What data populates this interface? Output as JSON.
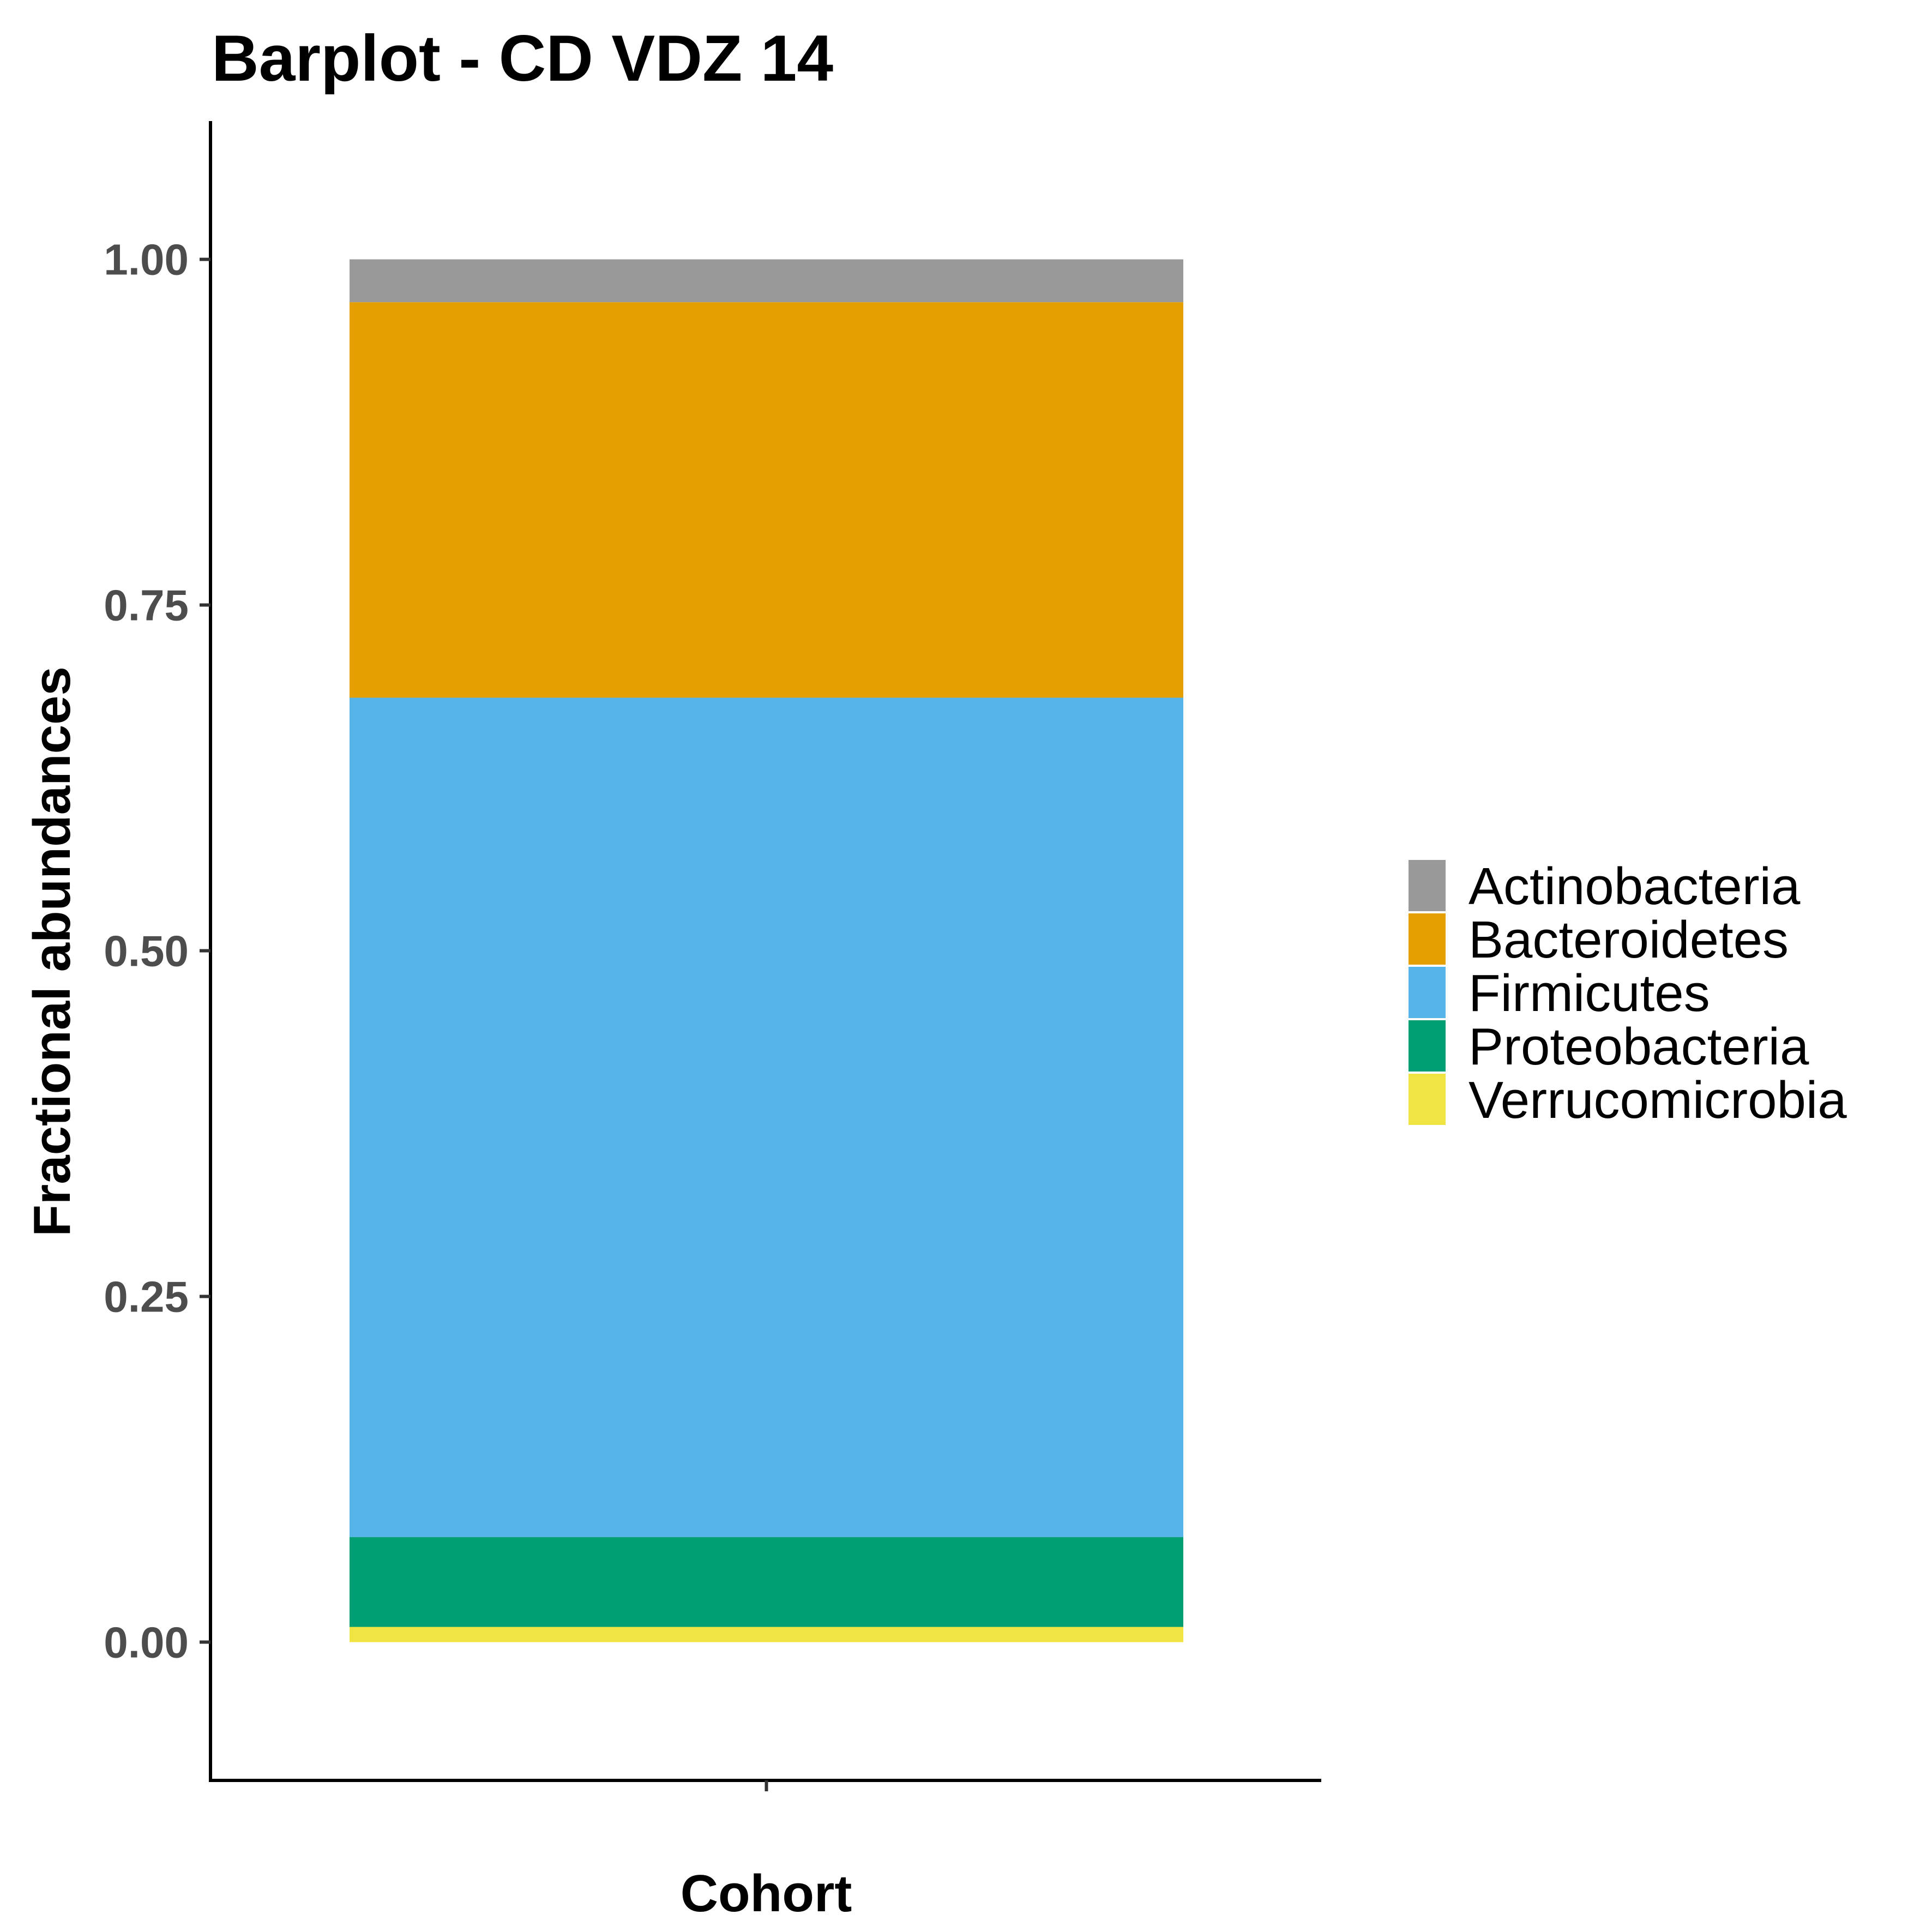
{
  "chart_data": {
    "type": "bar",
    "stacked": true,
    "title": "Barplot - CD VDZ 14",
    "xlabel": "Cohort",
    "ylabel": "Fractional abundances",
    "categories": [
      ""
    ],
    "ylim": [
      -0.1,
      1.1
    ],
    "yticks": [
      0.0,
      0.25,
      0.5,
      0.75,
      1.0
    ],
    "ytick_labels": [
      "0.00",
      "0.25",
      "0.50",
      "0.75",
      "1.00"
    ],
    "grid": false,
    "legend_position": "right",
    "series": [
      {
        "name": "Verrucomicrobia",
        "values": [
          0.011
        ],
        "color": "#F0E442"
      },
      {
        "name": "Proteobacteria",
        "values": [
          0.065
        ],
        "color": "#009E73"
      },
      {
        "name": "Firmicutes",
        "values": [
          0.607
        ],
        "color": "#56B4E9"
      },
      {
        "name": "Bacteroidetes",
        "values": [
          0.286
        ],
        "color": "#E69F00"
      },
      {
        "name": "Actinobacteria",
        "values": [
          0.031
        ],
        "color": "#999999"
      }
    ],
    "legend_order": [
      "Actinobacteria",
      "Bacteroidetes",
      "Firmicutes",
      "Proteobacteria",
      "Verrucomicrobia"
    ]
  }
}
